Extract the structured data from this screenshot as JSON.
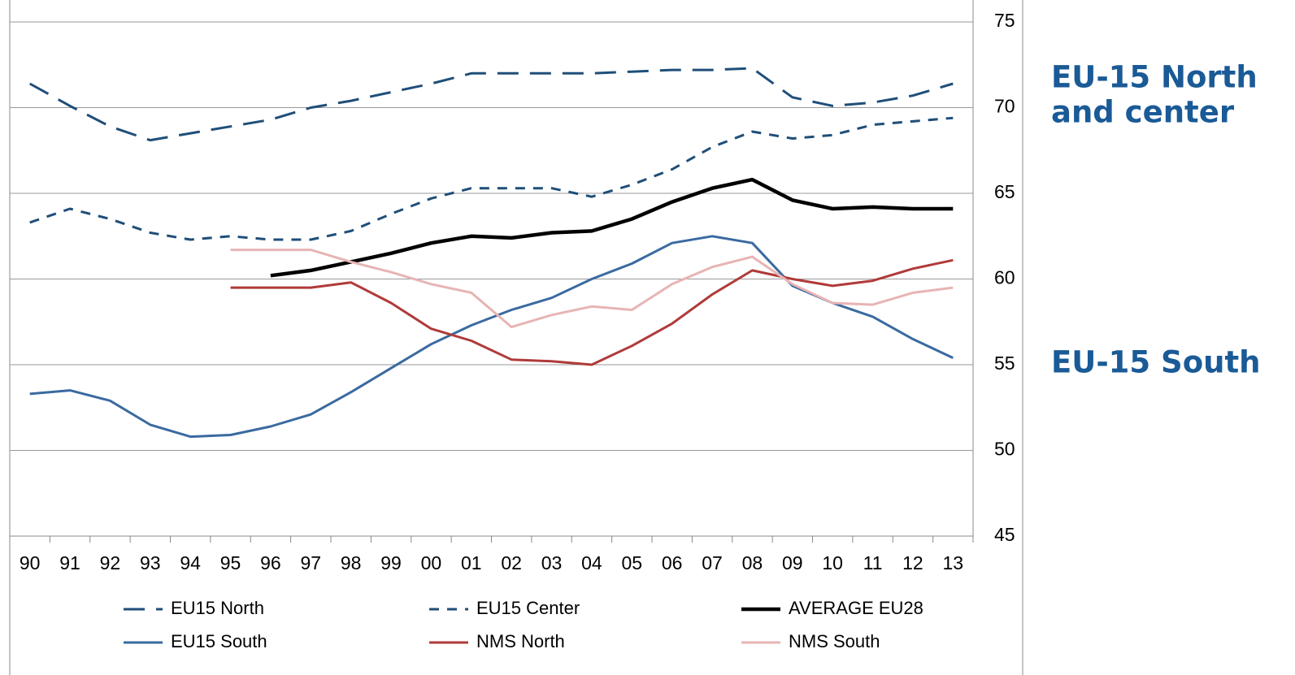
{
  "chart_data": {
    "type": "line",
    "categories": [
      "90",
      "91",
      "92",
      "93",
      "94",
      "95",
      "96",
      "97",
      "98",
      "99",
      "00",
      "01",
      "02",
      "03",
      "04",
      "05",
      "06",
      "07",
      "08",
      "09",
      "10",
      "11",
      "12",
      "13"
    ],
    "ylim": [
      45,
      75
    ],
    "yticks": [
      45,
      50,
      55,
      60,
      65,
      70,
      75
    ],
    "grid": true,
    "y_axis_side": "right",
    "legend": "bottom",
    "annotations": [
      {
        "lines": [
          "EU-15 North",
          "and center"
        ]
      },
      {
        "lines": [
          "EU-15 South"
        ]
      }
    ],
    "series": [
      {
        "name": "EU15 North",
        "color": "#1f4e79",
        "style": "long-dash",
        "values": [
          71.4,
          70.1,
          68.9,
          68.1,
          68.5,
          68.9,
          69.3,
          70.0,
          70.4,
          70.9,
          71.4,
          72.0,
          72.0,
          72.0,
          72.0,
          72.1,
          72.2,
          72.2,
          72.3,
          70.6,
          70.1,
          70.3,
          70.7,
          71.4
        ]
      },
      {
        "name": "EU15 Center",
        "color": "#1f4e79",
        "style": "dash",
        "values": [
          63.3,
          64.1,
          63.5,
          62.7,
          62.3,
          62.5,
          62.3,
          62.3,
          62.8,
          63.8,
          64.7,
          65.3,
          65.3,
          65.3,
          64.8,
          65.5,
          66.4,
          67.7,
          68.6,
          68.2,
          68.4,
          69.0,
          69.2,
          69.4
        ]
      },
      {
        "name": "AVERAGE EU28",
        "color": "#000000",
        "style": "bold",
        "values": [
          null,
          null,
          null,
          null,
          null,
          null,
          60.2,
          60.5,
          61.0,
          61.5,
          62.1,
          62.5,
          62.4,
          62.7,
          62.8,
          63.5,
          64.5,
          65.3,
          65.8,
          64.6,
          64.1,
          64.2,
          64.1,
          64.1
        ]
      },
      {
        "name": "EU15 South",
        "color": "#3a6aa0",
        "style": "solid",
        "values": [
          53.3,
          53.5,
          52.9,
          51.5,
          50.8,
          50.9,
          51.4,
          52.1,
          53.4,
          54.8,
          56.2,
          57.3,
          58.2,
          58.9,
          60.0,
          60.9,
          62.1,
          62.5,
          62.1,
          59.6,
          58.6,
          57.8,
          56.5,
          55.4
        ]
      },
      {
        "name": "NMS North",
        "color": "#b03a3a",
        "style": "solid",
        "values": [
          null,
          null,
          null,
          null,
          null,
          59.5,
          59.5,
          59.5,
          59.8,
          58.6,
          57.1,
          56.4,
          55.3,
          55.2,
          55.0,
          56.1,
          57.4,
          59.1,
          60.5,
          60.0,
          59.6,
          59.9,
          60.6,
          61.1
        ]
      },
      {
        "name": "NMS South",
        "color": "#e8b4b4",
        "style": "solid",
        "values": [
          null,
          null,
          null,
          null,
          null,
          61.7,
          61.7,
          61.7,
          61.0,
          60.4,
          59.7,
          59.2,
          57.2,
          57.9,
          58.4,
          58.2,
          59.7,
          60.7,
          61.3,
          59.7,
          58.6,
          58.5,
          59.2,
          59.5
        ]
      }
    ]
  }
}
